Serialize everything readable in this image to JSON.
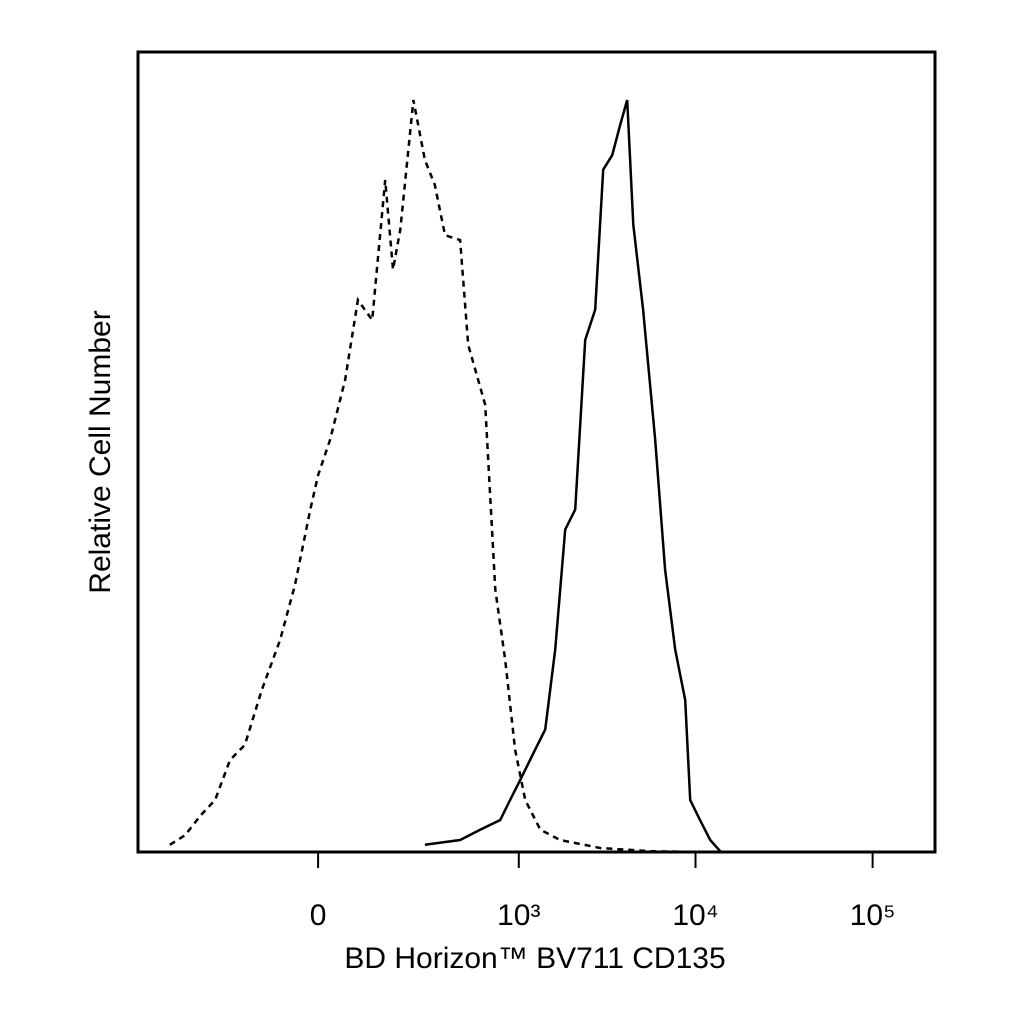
{
  "chart_data": {
    "type": "line",
    "xlabel": "BD Horizon™  BV711 CD135",
    "ylabel": "Relative Cell Number",
    "xscale": "biexponential",
    "xlim": [
      -762,
      225000
    ],
    "xticks": [
      0,
      {
        "value": 1000,
        "label": "10³"
      },
      {
        "value": 10000,
        "label": "10⁴"
      },
      {
        "value": 100000,
        "label": "10⁵"
      }
    ],
    "ylim": [
      0,
      100
    ],
    "series": [
      {
        "style": "dashed",
        "color": "#000000",
        "x": [
          -497,
          -404,
          -324,
          -263,
          -209,
          -163,
          -118,
          -76,
          -45,
          -15,
          0,
          23,
          53,
          80,
          113,
          146,
          168,
          190,
          234,
          278,
          321,
          371,
          457,
          510,
          641,
          733,
          836,
          953,
          1088,
          1325,
          1718,
          2896,
          5550,
          10600
        ],
        "values": [
          0.9,
          2.1,
          4.6,
          6.5,
          11.5,
          13.4,
          20.3,
          26.5,
          33.4,
          42.8,
          47.1,
          51.5,
          59,
          69,
          66.5,
          84,
          72.8,
          77.8,
          94,
          86.5,
          83.4,
          77.1,
          76.5,
          63.4,
          55.9,
          32.8,
          24,
          12.8,
          6.5,
          2.8,
          1.5,
          0.5,
          0.1,
          0
        ]
      },
      {
        "style": "solid",
        "color": "#000000",
        "x": [
          278,
          457,
          601,
          783,
          892,
          1018,
          1240,
          1413,
          1610,
          1835,
          2091,
          2383,
          2714,
          3012,
          3386,
          3756,
          4114,
          4455,
          5062,
          5920,
          6734,
          7681,
          8747,
          9339,
          10600,
          12106,
          13794
        ],
        "values": [
          0.9,
          1.5,
          2.8,
          4,
          6.5,
          9,
          12.8,
          15.3,
          25.3,
          40.3,
          42.8,
          64,
          67.8,
          85.3,
          87.1,
          90.9,
          94,
          78.4,
          67.8,
          51.5,
          35.3,
          25.3,
          19,
          6.5,
          4,
          1.5,
          0.1
        ]
      }
    ]
  }
}
